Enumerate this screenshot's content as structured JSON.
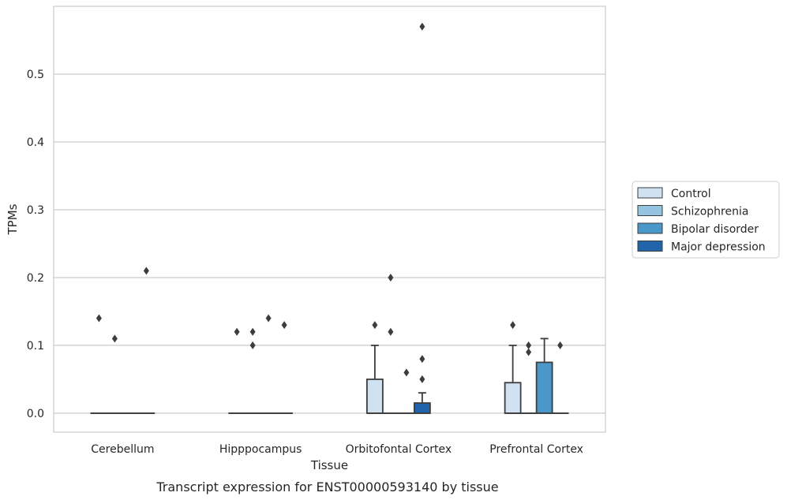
{
  "caption": "Transcript expression for ENST00000593140 by tissue",
  "chart_data": {
    "type": "box",
    "title": "",
    "xlabel": "Tissue",
    "ylabel": "TPMs",
    "ylim": [
      -0.028,
      0.6
    ],
    "yticks": [
      0.0,
      0.1,
      0.2,
      0.3,
      0.4,
      0.5
    ],
    "ytick_labels": [
      "0.0",
      "0.1",
      "0.2",
      "0.3",
      "0.4",
      "0.5"
    ],
    "grid": "horizontal",
    "legend_position": "right",
    "categories": [
      "Cerebellum",
      "Hipppocampus",
      "Orbitofontal Cortex",
      "Prefrontal Cortex"
    ],
    "series": [
      {
        "name": "Control",
        "color": "#d0e1f2",
        "boxes": [
          {
            "q1": 0,
            "median": 0,
            "q3": 0,
            "whisker_low": 0,
            "whisker_high": 0,
            "outliers": [
              0.14
            ]
          },
          {
            "q1": 0,
            "median": 0,
            "q3": 0,
            "whisker_low": 0,
            "whisker_high": 0,
            "outliers": [
              0.12
            ]
          },
          {
            "q1": 0,
            "median": 0,
            "q3": 0.05,
            "whisker_low": 0,
            "whisker_high": 0.1,
            "outliers": [
              0.13
            ]
          },
          {
            "q1": 0,
            "median": 0,
            "q3": 0.045,
            "whisker_low": 0,
            "whisker_high": 0.1,
            "outliers": [
              0.13
            ]
          }
        ]
      },
      {
        "name": "Schizophrenia",
        "color": "#94c4df",
        "boxes": [
          {
            "q1": 0,
            "median": 0,
            "q3": 0,
            "whisker_low": 0,
            "whisker_high": 0,
            "outliers": [
              0.11
            ]
          },
          {
            "q1": 0,
            "median": 0,
            "q3": 0,
            "whisker_low": 0,
            "whisker_high": 0,
            "outliers": [
              0.12,
              0.1
            ]
          },
          {
            "q1": 0,
            "median": 0,
            "q3": 0,
            "whisker_low": 0,
            "whisker_high": 0,
            "outliers": [
              0.2,
              0.12
            ]
          },
          {
            "q1": 0,
            "median": 0,
            "q3": 0,
            "whisker_low": 0,
            "whisker_high": 0,
            "outliers": [
              0.1,
              0.09
            ]
          }
        ]
      },
      {
        "name": "Bipolar disorder",
        "color": "#4a98c9",
        "boxes": [
          {
            "q1": 0,
            "median": 0,
            "q3": 0,
            "whisker_low": 0,
            "whisker_high": 0,
            "outliers": []
          },
          {
            "q1": 0,
            "median": 0,
            "q3": 0,
            "whisker_low": 0,
            "whisker_high": 0,
            "outliers": [
              0.14
            ]
          },
          {
            "q1": 0,
            "median": 0,
            "q3": 0,
            "whisker_low": 0,
            "whisker_high": 0,
            "outliers": [
              0.06
            ]
          },
          {
            "q1": 0,
            "median": 0,
            "q3": 0.075,
            "whisker_low": 0,
            "whisker_high": 0.11,
            "outliers": []
          }
        ]
      },
      {
        "name": "Major depression",
        "color": "#2164ab",
        "boxes": [
          {
            "q1": 0,
            "median": 0,
            "q3": 0,
            "whisker_low": 0,
            "whisker_high": 0,
            "outliers": [
              0.21
            ]
          },
          {
            "q1": 0,
            "median": 0,
            "q3": 0,
            "whisker_low": 0,
            "whisker_high": 0,
            "outliers": [
              0.13
            ]
          },
          {
            "q1": 0,
            "median": 0,
            "q3": 0.015,
            "whisker_low": 0,
            "whisker_high": 0.03,
            "outliers": [
              0.57,
              0.08,
              0.05
            ]
          },
          {
            "q1": 0,
            "median": 0,
            "q3": 0,
            "whisker_low": 0,
            "whisker_high": 0,
            "outliers": [
              0.1
            ]
          }
        ]
      }
    ]
  }
}
